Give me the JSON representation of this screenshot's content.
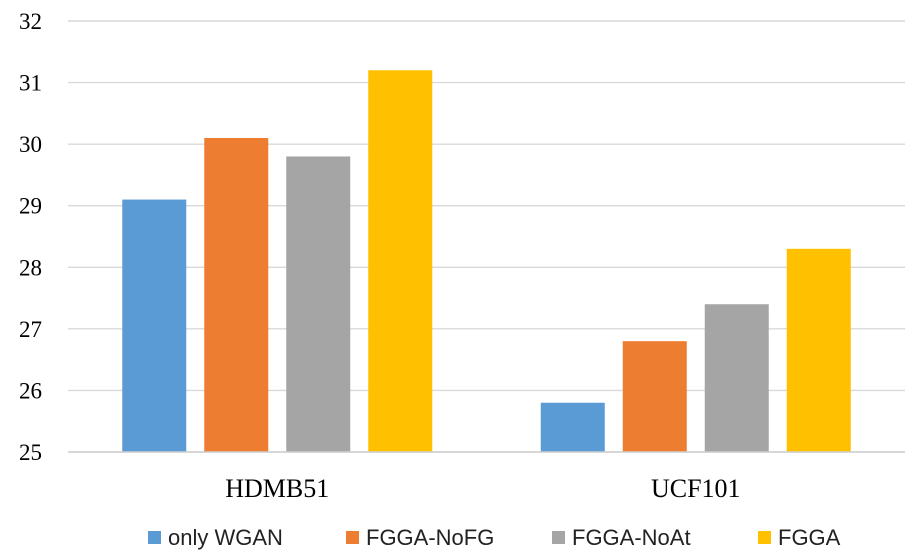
{
  "chart_data": {
    "type": "bar",
    "title": "",
    "xlabel": "",
    "ylabel": "",
    "categories": [
      "HDMB51",
      "UCF101"
    ],
    "ylim": [
      25,
      32
    ],
    "yticks": [
      25,
      26,
      27,
      28,
      29,
      30,
      31,
      32
    ],
    "grid": true,
    "legend_position": "bottom",
    "series": [
      {
        "name": "only WGAN",
        "color": "#5B9BD5",
        "values": [
          29.1,
          25.8
        ]
      },
      {
        "name": "FGGA-NoFG",
        "color": "#ED7D31",
        "values": [
          30.1,
          26.8
        ]
      },
      {
        "name": "FGGA-NoAt",
        "color": "#A5A5A5",
        "values": [
          29.8,
          27.4
        ]
      },
      {
        "name": "FGGA",
        "color": "#FFC000",
        "values": [
          31.2,
          28.3
        ]
      }
    ]
  }
}
